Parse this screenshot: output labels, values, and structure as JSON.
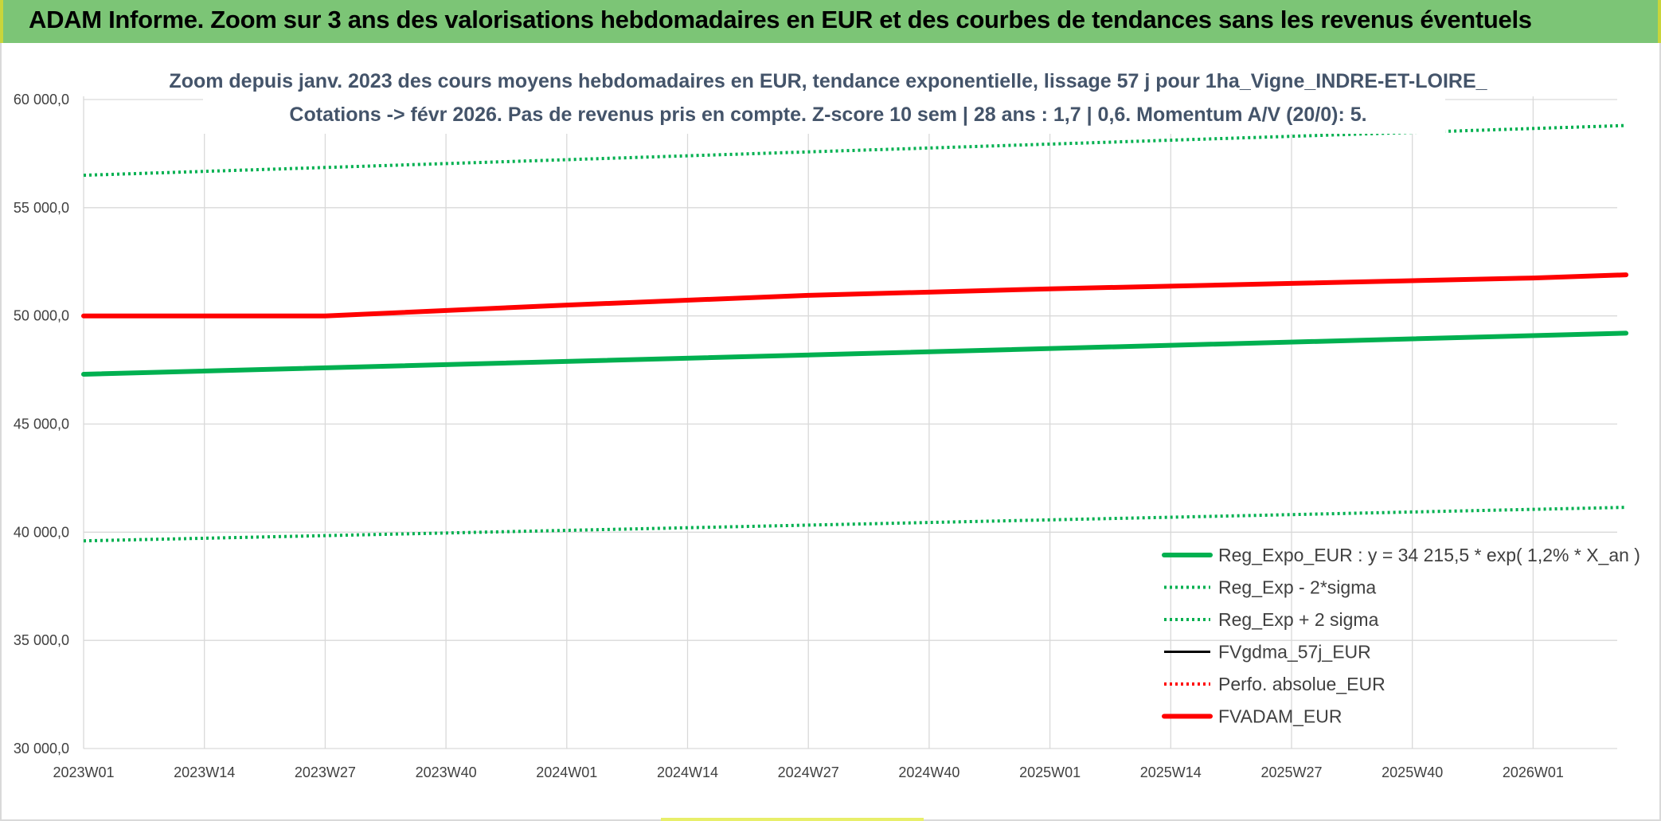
{
  "header": {
    "banner_title": "ADAM Informe. Zoom sur 3 ans des valorisations hebdomadaires en EUR et des courbes de tendances sans les revenus éventuels"
  },
  "chart_data": {
    "type": "line",
    "subtitle_lines": [
      "Zoom depuis janv. 2023 des cours moyens hebdomadaires en EUR, tendance exponentielle, lissage 57 j pour 1ha_Vigne_INDRE-ET-LOIRE_",
      "Cotations -> févr 2026. Pas de revenus pris en compte. Z-score 10 sem | 28 ans : 1,7 | 0,6. Momentum A/V (20/0): 5."
    ],
    "x_tick_labels": [
      "2023W01",
      "2023W14",
      "2023W27",
      "2023W40",
      "2024W01",
      "2024W14",
      "2024W27",
      "2024W40",
      "2025W01",
      "2025W14",
      "2025W27",
      "2025W40",
      "2026W01"
    ],
    "x_range_weeks": [
      0,
      166
    ],
    "ylim": [
      30000,
      60000
    ],
    "y_ticks": [
      30000,
      35000,
      40000,
      45000,
      50000,
      55000,
      60000
    ],
    "y_tick_labels": [
      "30 000,0",
      "35 000,0",
      "40 000,0",
      "45 000,0",
      "50 000,0",
      "55 000,0",
      "60 000,0"
    ],
    "grid": true,
    "legend_position": "bottom-right",
    "series": [
      {
        "name": "Reg_Expo_EUR : y = 34 215,5 * exp( 1,2% *  X_an )",
        "color": "#00b050",
        "style": "solid-thick",
        "x": [
          0,
          166
        ],
        "y": [
          47300,
          49200
        ]
      },
      {
        "name": "Reg_Exp - 2*sigma",
        "color": "#00b050",
        "style": "dotted",
        "x": [
          0,
          166
        ],
        "y": [
          39600,
          41150
        ]
      },
      {
        "name": "Reg_Exp + 2 sigma",
        "color": "#00b050",
        "style": "dotted",
        "x": [
          0,
          166
        ],
        "y": [
          56500,
          58800
        ]
      },
      {
        "name": "FVgdma_57j_EUR",
        "color": "#000000",
        "style": "solid",
        "x": [],
        "y": []
      },
      {
        "name": "Perfo. absolue_EUR",
        "color": "#ff0000",
        "style": "dotted",
        "x": [],
        "y": []
      },
      {
        "name": "FVADAM_EUR",
        "color": "#ff0000",
        "style": "solid-thick",
        "x": [
          0,
          26,
          52,
          78,
          104,
          130,
          156,
          166
        ],
        "y": [
          50000,
          50000,
          50500,
          50950,
          51250,
          51500,
          51750,
          51900
        ]
      }
    ]
  }
}
